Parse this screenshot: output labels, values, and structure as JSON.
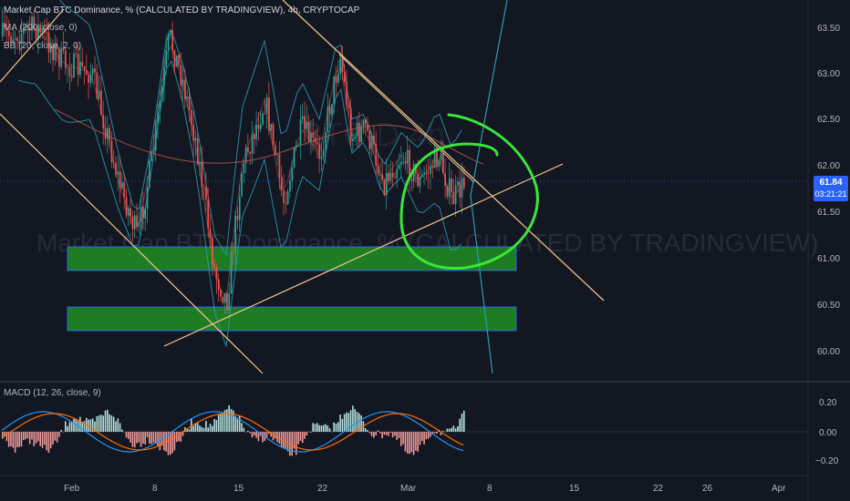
{
  "legend": {
    "main": "Market Cap BTC Dominance, % (CALCULATED BY TRADINGVIEW), 4h, CRYPTOCAP",
    "ma": "MA (200, close, 0)",
    "bb": "BB (20, close, 2, 0)",
    "macd": "MACD (12, 26, close, 9)"
  },
  "watermark": "Market Cap BTC Dominance, % (CALCULATED BY TRADINGVIEW)",
  "last_price": {
    "value": "61.84",
    "countdown": "03:21:21"
  },
  "price_axis": [
    "63.50",
    "63.00",
    "62.50",
    "62.00",
    "61.50",
    "61.00",
    "60.50",
    "60.00"
  ],
  "macd_axis": [
    "0.20",
    "0.00",
    "−0.20"
  ],
  "time_axis": [
    "Feb",
    "8",
    "15",
    "22",
    "Mar",
    "8",
    "15",
    "22",
    "26",
    "Apr"
  ],
  "colors": {
    "background": "#131722",
    "candle_up": "#26a69a",
    "candle_down": "#ef5350",
    "zone_fill": "#1e7d22",
    "zone_border": "#2962ff",
    "trendline": "#f5c78a",
    "annotation": "#39e639",
    "ma": "#2196f3",
    "bollinger": "#2a9bb3",
    "price_tag": "#2962ff"
  }
}
